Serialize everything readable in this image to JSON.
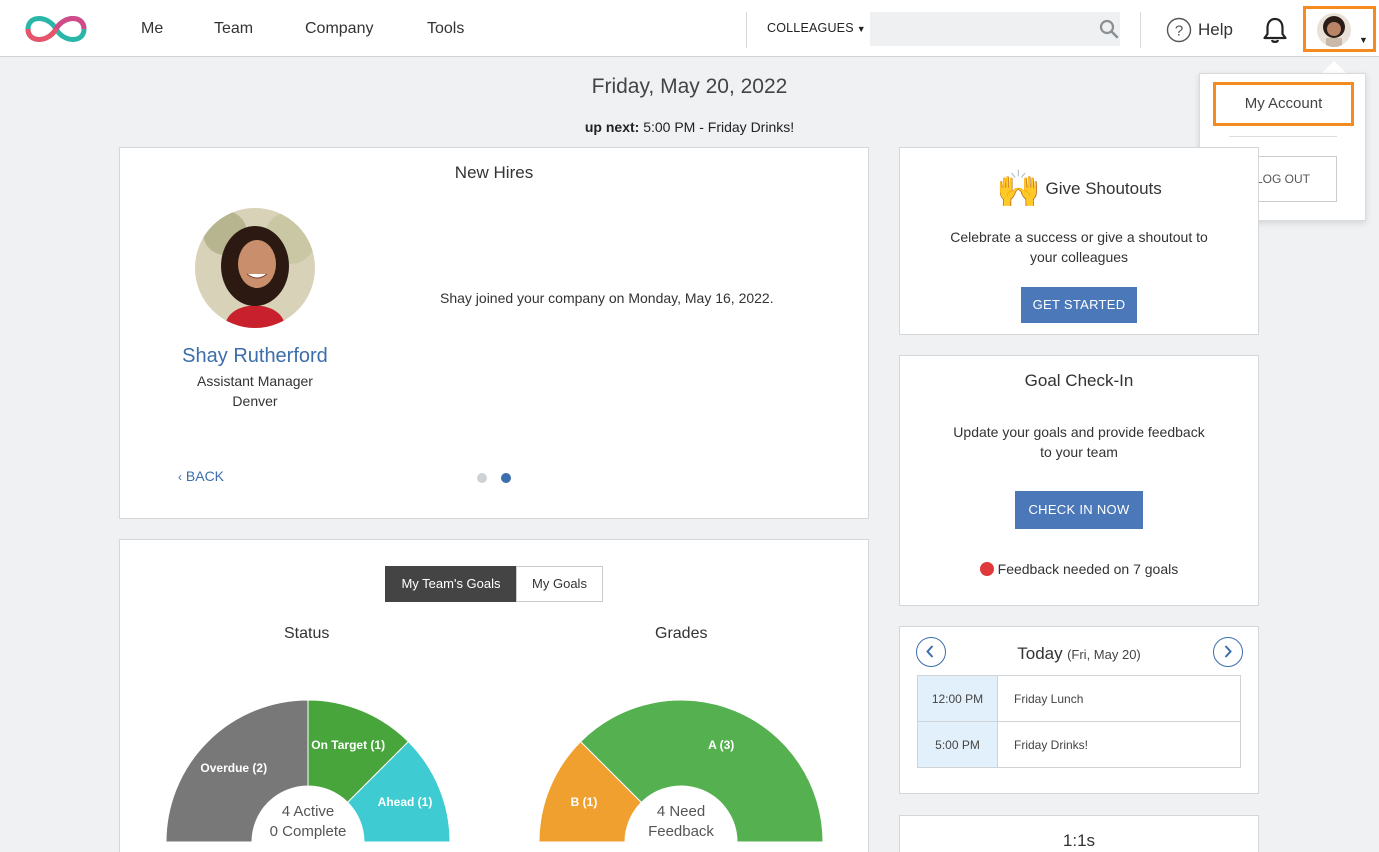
{
  "nav": {
    "items": [
      "Me",
      "Team",
      "Company",
      "Tools"
    ],
    "colleagues_label": "COLLEAGUES",
    "search_placeholder": "",
    "help_label": "Help"
  },
  "account_menu": {
    "my_account": "My Account",
    "logout": "LOG OUT"
  },
  "header": {
    "date": "Friday, May 20, 2022",
    "up_next_label": "up next:",
    "up_next_value": " 5:00 PM - Friday Drinks!"
  },
  "new_hires": {
    "title": "New Hires",
    "name": "Shay Rutherford",
    "job_title": "Assistant Manager",
    "location": "Denver",
    "message": "Shay joined your company on Monday, May 16, 2022.",
    "back_label": "BACK",
    "pager_total": 2,
    "pager_active": 2
  },
  "goals": {
    "tabs": [
      "My Team's Goals",
      "My Goals"
    ],
    "active_tab": "My Team's Goals",
    "status": {
      "title": "Status",
      "center_line1": "4 Active",
      "center_line2": "0 Complete",
      "segments": [
        {
          "label": "Overdue (2)",
          "value": 2,
          "color": "#787878"
        },
        {
          "label": "On Target (1)",
          "value": 1,
          "color": "#47a53c"
        },
        {
          "label": "Ahead (1)",
          "value": 1,
          "color": "#3ecbd1"
        }
      ]
    },
    "grades": {
      "title": "Grades",
      "center_line1": "4 Need",
      "center_line2": "Feedback",
      "segments": [
        {
          "label": "B (1)",
          "value": 1,
          "color": "#f0a02e"
        },
        {
          "label": "A (3)",
          "value": 3,
          "color": "#55b050"
        }
      ]
    }
  },
  "shoutouts": {
    "title": "Give Shoutouts",
    "emoji": "🙌",
    "description_line1": "Celebrate a success or give a shoutout to",
    "description_line2": "your colleagues",
    "button": "GET STARTED"
  },
  "goal_checkin": {
    "title": "Goal Check-In",
    "description_line1": "Update your goals and provide feedback",
    "description_line2": "to your team",
    "button": "CHECK IN NOW",
    "feedback_note": "Feedback needed on 7 goals",
    "status_color": "#e0393b"
  },
  "calendar": {
    "title": "Today",
    "subtitle": "(Fri, May 20)",
    "events": [
      {
        "time": "12:00 PM",
        "name": "Friday Lunch"
      },
      {
        "time": "5:00 PM",
        "name": "Friday Drinks!"
      }
    ]
  },
  "one_on_ones": {
    "title": "1:1s"
  },
  "colors": {
    "accent_blue": "#4a78b8",
    "link_blue": "#3b6eaa",
    "highlight_orange": "#f58a1f"
  }
}
